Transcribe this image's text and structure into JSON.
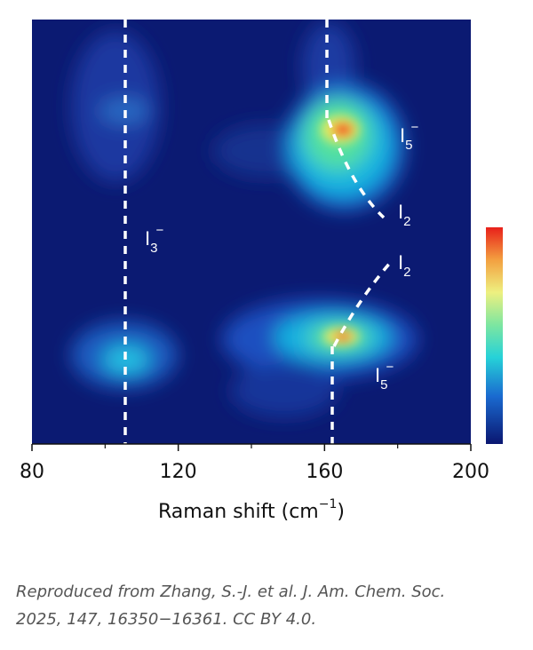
{
  "chart_data": {
    "type": "heatmap",
    "xlabel": {
      "before": "Raman shift (cm",
      "sup": "−1",
      "after": ")"
    },
    "xlim": [
      80,
      200
    ],
    "xticks": [
      80,
      120,
      160,
      200
    ],
    "xminor_ticks": [
      100,
      140,
      180
    ],
    "annotations": [
      {
        "base": "I",
        "sub": "5",
        "sup": "−"
      },
      {
        "base": "I",
        "sub": "2"
      },
      {
        "base": "I",
        "sub": "3",
        "sup": "−"
      },
      {
        "base": "I",
        "sub": "2"
      },
      {
        "base": "I",
        "sub": "5",
        "sup": "−"
      }
    ],
    "caption": [
      "Reproduced from Zhang, S.-J. et al. J. Am. Chem. Soc.",
      "2025, 147, 16350−16361. CC BY 4.0."
    ]
  }
}
